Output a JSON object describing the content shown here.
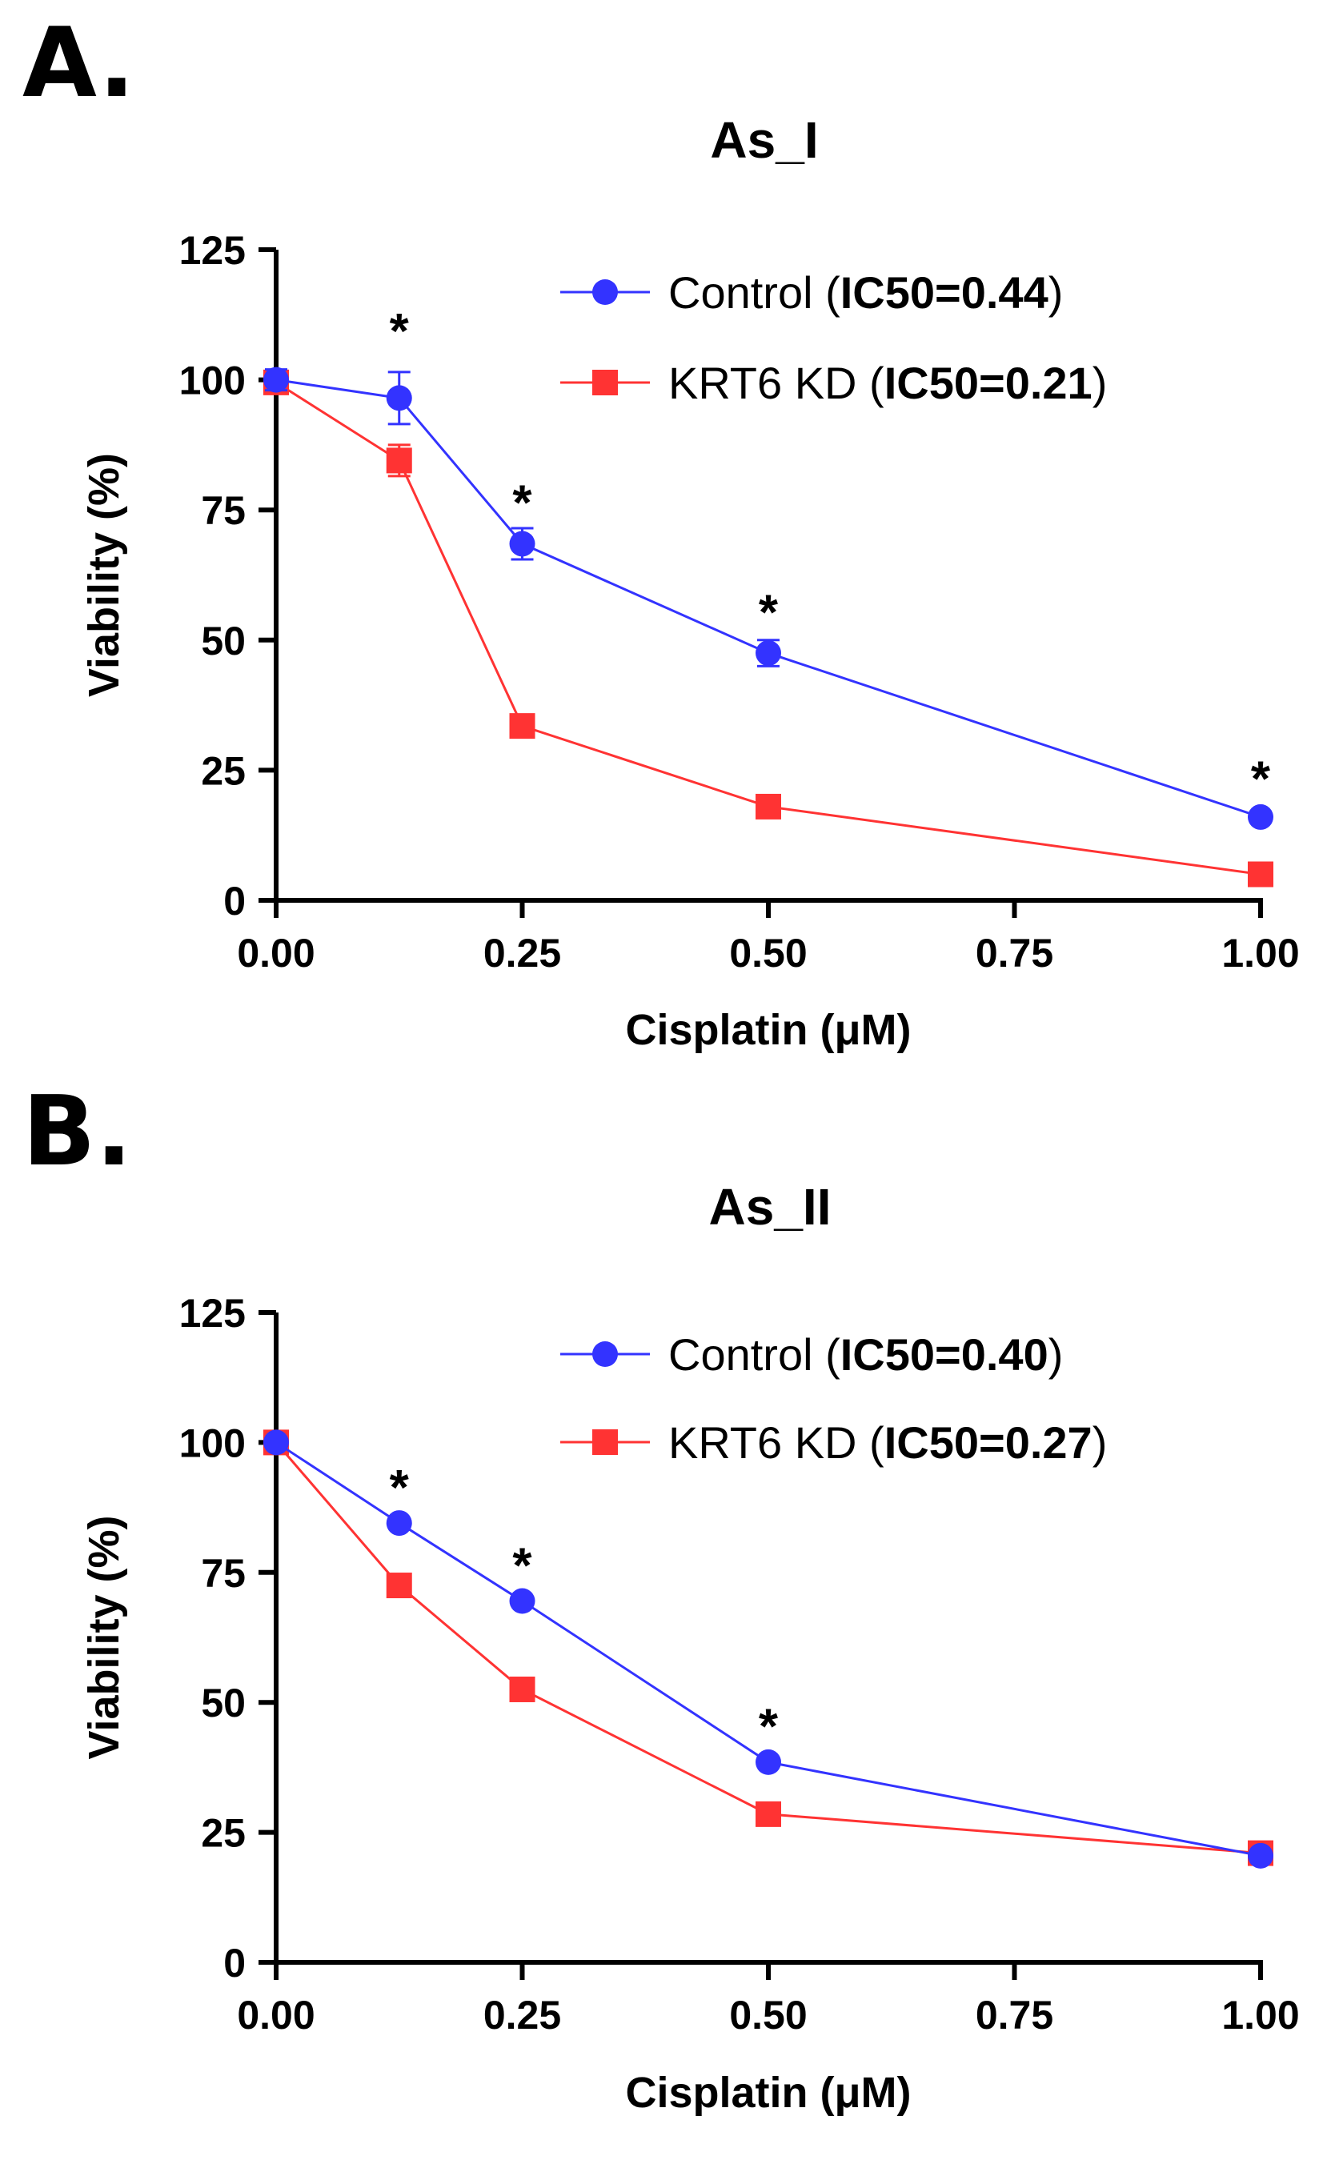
{
  "chart_data": [
    {
      "panel": "A.",
      "type": "line",
      "title": "As_I",
      "xlabel": "Cisplatin (μM)",
      "ylabel": "Viability (%)",
      "xlim": [
        0,
        1
      ],
      "ylim": [
        0,
        125
      ],
      "xticks": [
        "0.00",
        "0.25",
        "0.50",
        "0.75",
        "1.00"
      ],
      "yticks": [
        "0",
        "25",
        "50",
        "75",
        "100",
        "125"
      ],
      "x": [
        0,
        0.125,
        0.25,
        0.5,
        1.0
      ],
      "legend_position": "top-right",
      "series": [
        {
          "name": "Control",
          "ic50_label": "IC50=0.44",
          "color": "#3333ff",
          "marker": "circle",
          "values": [
            100,
            96.5,
            68.5,
            47.5,
            16
          ],
          "errors": [
            2,
            5,
            3,
            2.5,
            1
          ]
        },
        {
          "name": "KRT6 KD",
          "ic50_label": "IC50=0.21",
          "color": "#ff3333",
          "marker": "square",
          "values": [
            99.5,
            84.5,
            33.5,
            18,
            5
          ],
          "errors": [
            2,
            3,
            1.5,
            1,
            0.5
          ]
        }
      ],
      "annotations": [
        {
          "text": "*",
          "x": 0.125,
          "y": 111
        },
        {
          "text": "*",
          "x": 0.25,
          "y": 78
        },
        {
          "text": "*",
          "x": 0.5,
          "y": 57
        },
        {
          "text": "*",
          "x": 1.0,
          "y": 25
        }
      ]
    },
    {
      "panel": "B.",
      "type": "line",
      "title": "As_II",
      "xlabel": "Cisplatin (μM)",
      "ylabel": "Viability (%)",
      "xlim": [
        0,
        1
      ],
      "ylim": [
        0,
        125
      ],
      "xticks": [
        "0.00",
        "0.25",
        "0.50",
        "0.75",
        "1.00"
      ],
      "yticks": [
        "0",
        "25",
        "50",
        "75",
        "100",
        "125"
      ],
      "x": [
        0,
        0.125,
        0.25,
        0.5,
        1.0
      ],
      "legend_position": "top-right",
      "series": [
        {
          "name": "Control",
          "ic50_label": "IC50=0.40",
          "color": "#3333ff",
          "marker": "circle",
          "values": [
            100,
            84.5,
            69.5,
            38.5,
            20.5
          ],
          "errors": [
            0.5,
            0.8,
            0.8,
            0.8,
            0.8
          ]
        },
        {
          "name": "KRT6 KD",
          "ic50_label": "IC50=0.27",
          "color": "#ff3333",
          "marker": "square",
          "values": [
            100,
            72.5,
            52.5,
            28.5,
            21
          ],
          "errors": [
            0.5,
            0.8,
            0.8,
            0.8,
            0.8
          ]
        }
      ],
      "annotations": [
        {
          "text": "*",
          "x": 0.125,
          "y": 93
        },
        {
          "text": "*",
          "x": 0.25,
          "y": 78
        },
        {
          "text": "*",
          "x": 0.5,
          "y": 47
        }
      ]
    }
  ]
}
